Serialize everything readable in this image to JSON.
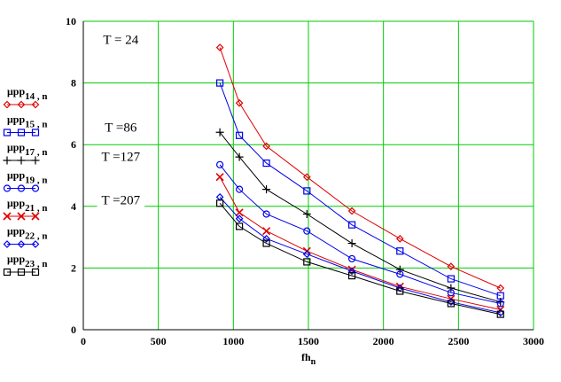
{
  "chart_data": {
    "type": "line",
    "x": [
      910,
      1040,
      1220,
      1490,
      1790,
      2110,
      2450,
      2780
    ],
    "xlim": [
      0,
      3000
    ],
    "ylim": [
      0,
      10
    ],
    "xticks": [
      0,
      500,
      1000,
      1500,
      2000,
      2500,
      3000
    ],
    "yticks": [
      0,
      2,
      4,
      6,
      8,
      10
    ],
    "xtick_labels": [
      "0",
      "500",
      "1000",
      "1500",
      "2000",
      "2500",
      "3000"
    ],
    "ytick_labels": [
      "0",
      "2",
      "4",
      "6",
      "8",
      "10"
    ],
    "xlabel": {
      "main": "fh",
      "sub": "n"
    },
    "grid": true,
    "grid_color": "#00cc00",
    "series": [
      {
        "name": "μpp",
        "sub": "14 , n",
        "color": "#e00000",
        "marker": "diamond",
        "values": [
          9.15,
          7.35,
          5.95,
          4.95,
          3.85,
          2.95,
          2.05,
          1.35
        ]
      },
      {
        "name": "μpp",
        "sub": "15 , n",
        "color": "#0000ee",
        "marker": "square",
        "values": [
          8.0,
          6.3,
          5.4,
          4.5,
          3.4,
          2.55,
          1.65,
          1.1
        ]
      },
      {
        "name": "μpp",
        "sub": "17 , n",
        "color": "#000000",
        "marker": "plus",
        "values": [
          6.4,
          5.6,
          4.55,
          3.75,
          2.8,
          1.95,
          1.35,
          0.9
        ]
      },
      {
        "name": "μpp",
        "sub": "19 , n",
        "color": "#0000ee",
        "marker": "circle",
        "values": [
          5.35,
          4.55,
          3.75,
          3.2,
          2.3,
          1.8,
          1.2,
          0.85
        ]
      },
      {
        "name": "μpp",
        "sub": "21 , n",
        "color": "#e00000",
        "marker": "cross",
        "values": [
          4.95,
          3.8,
          3.2,
          2.55,
          1.95,
          1.4,
          1.0,
          0.65
        ]
      },
      {
        "name": "μpp",
        "sub": "22 , n",
        "color": "#0000ee",
        "marker": "diamond",
        "values": [
          4.3,
          3.6,
          2.95,
          2.45,
          1.9,
          1.35,
          0.9,
          0.55
        ]
      },
      {
        "name": "μpp",
        "sub": "23 , n",
        "color": "#000000",
        "marker": "square",
        "values": [
          4.1,
          3.35,
          2.8,
          2.2,
          1.75,
          1.25,
          0.85,
          0.5
        ]
      }
    ],
    "annotations": [
      {
        "text": "T = 24",
        "x": 250,
        "y": 9.3
      },
      {
        "text": "T =86",
        "x": 250,
        "y": 6.45
      },
      {
        "text": "T =127",
        "x": 250,
        "y": 5.5
      },
      {
        "text": "T =207",
        "x": 250,
        "y": 4.1
      }
    ]
  }
}
